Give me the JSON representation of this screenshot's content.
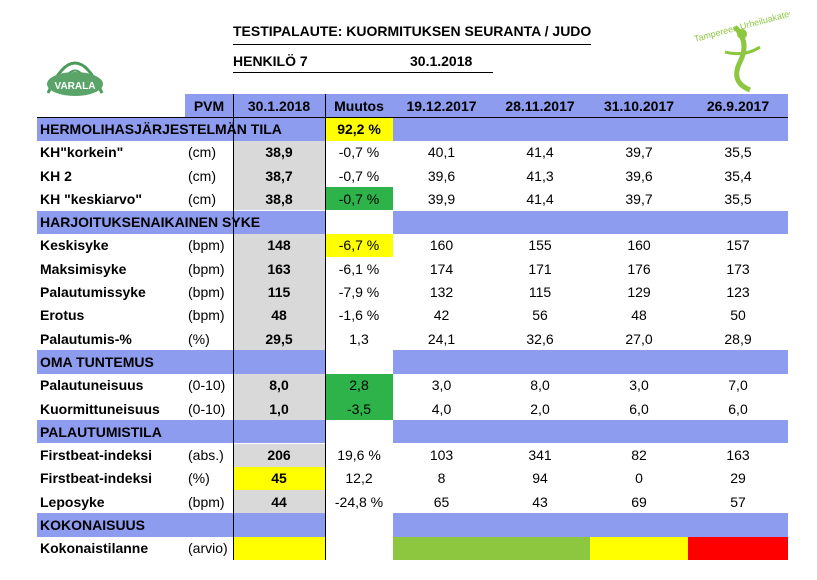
{
  "header": {
    "title": "TESTIPALAUTE: KUORMITUKSEN SEURANTA / JUDO",
    "person": "HENKILÖ 7",
    "date": "30.1.2018"
  },
  "logos": {
    "left": "VARALA",
    "right": "Tampereen Urheiluakatemia"
  },
  "table": {
    "columns": [
      "PVM",
      "30.1.2018",
      "Muutos",
      "19.12.2017",
      "28.11.2017",
      "31.10.2017",
      "26.9.2017"
    ],
    "rows": [
      {
        "section": "HERMOLIHASJÄRJESTELMÄN TILA",
        "change": "92,2 %",
        "fills": {
          "3": "#ffff00"
        }
      },
      {
        "label": "KH\"korkein\"",
        "unit": "(cm)",
        "values": [
          "38,9",
          "-0,7 %",
          "40,1",
          "41,4",
          "39,7",
          "35,5"
        ]
      },
      {
        "label": "KH 2",
        "unit": "(cm)",
        "values": [
          "38,7",
          "-0,7 %",
          "39,6",
          "41,3",
          "39,6",
          "35,4"
        ]
      },
      {
        "label": "KH \"keskiarvo\"",
        "unit": "(cm)",
        "values": [
          "38,8",
          "-0,7 %",
          "39,9",
          "41,4",
          "39,7",
          "35,5"
        ],
        "fills": {
          "3": "#2db34a"
        }
      },
      {
        "section": "HARJOITUKSENAIKAINEN SYKE"
      },
      {
        "label": "Keskisyke",
        "unit": "(bpm)",
        "values": [
          "148",
          "-6,7 %",
          "160",
          "155",
          "160",
          "157"
        ],
        "fills": {
          "3": "#ffff00"
        }
      },
      {
        "label": "Maksimisyke",
        "unit": "(bpm)",
        "values": [
          "163",
          "-6,1 %",
          "174",
          "171",
          "176",
          "173"
        ]
      },
      {
        "label": "Palautumissyke",
        "unit": "(bpm)",
        "values": [
          "115",
          "-7,9 %",
          "132",
          "115",
          "129",
          "123"
        ]
      },
      {
        "label": "Erotus",
        "unit": "(bpm)",
        "values": [
          "48",
          "-1,6 %",
          "42",
          "56",
          "48",
          "50"
        ]
      },
      {
        "label": "Palautumis-%",
        "unit": "(%)",
        "values": [
          "29,5",
          "1,3",
          "24,1",
          "32,6",
          "27,0",
          "28,9"
        ]
      },
      {
        "section": "OMA TUNTEMUS"
      },
      {
        "label": "Palautuneisuus",
        "unit": "(0-10)",
        "values": [
          "8,0",
          "2,8",
          "3,0",
          "8,0",
          "3,0",
          "7,0"
        ],
        "fills": {
          "3": "#2db34a"
        }
      },
      {
        "label": "Kuormittuneisuus",
        "unit": "(0-10)",
        "values": [
          "1,0",
          "-3,5",
          "4,0",
          "2,0",
          "6,0",
          "6,0"
        ],
        "fills": {
          "3": "#2db34a"
        }
      },
      {
        "section": "PALAUTUMISTILA"
      },
      {
        "label": "Firstbeat-indeksi",
        "unit": "(abs.)",
        "values": [
          "206",
          "19,6 %",
          "103",
          "341",
          "82",
          "163"
        ]
      },
      {
        "label": "Firstbeat-indeksi",
        "unit": "(%)",
        "values": [
          "45",
          "12,2",
          "8",
          "94",
          "0",
          "29"
        ],
        "fills": {
          "2": "#ffff00"
        }
      },
      {
        "label": "Leposyke",
        "unit": "(bpm)",
        "values": [
          "44",
          "-24,8 %",
          "65",
          "43",
          "69",
          "57"
        ]
      },
      {
        "section": "KOKONAISUUS"
      },
      {
        "label": "Kokonaistilanne",
        "unit": "(arvio)",
        "fills": {
          "2": "#ffff00",
          "4": "#8dc63f",
          "5": "#8dc63f",
          "6": "#ffff00",
          "7": "#ff0000"
        }
      }
    ]
  }
}
